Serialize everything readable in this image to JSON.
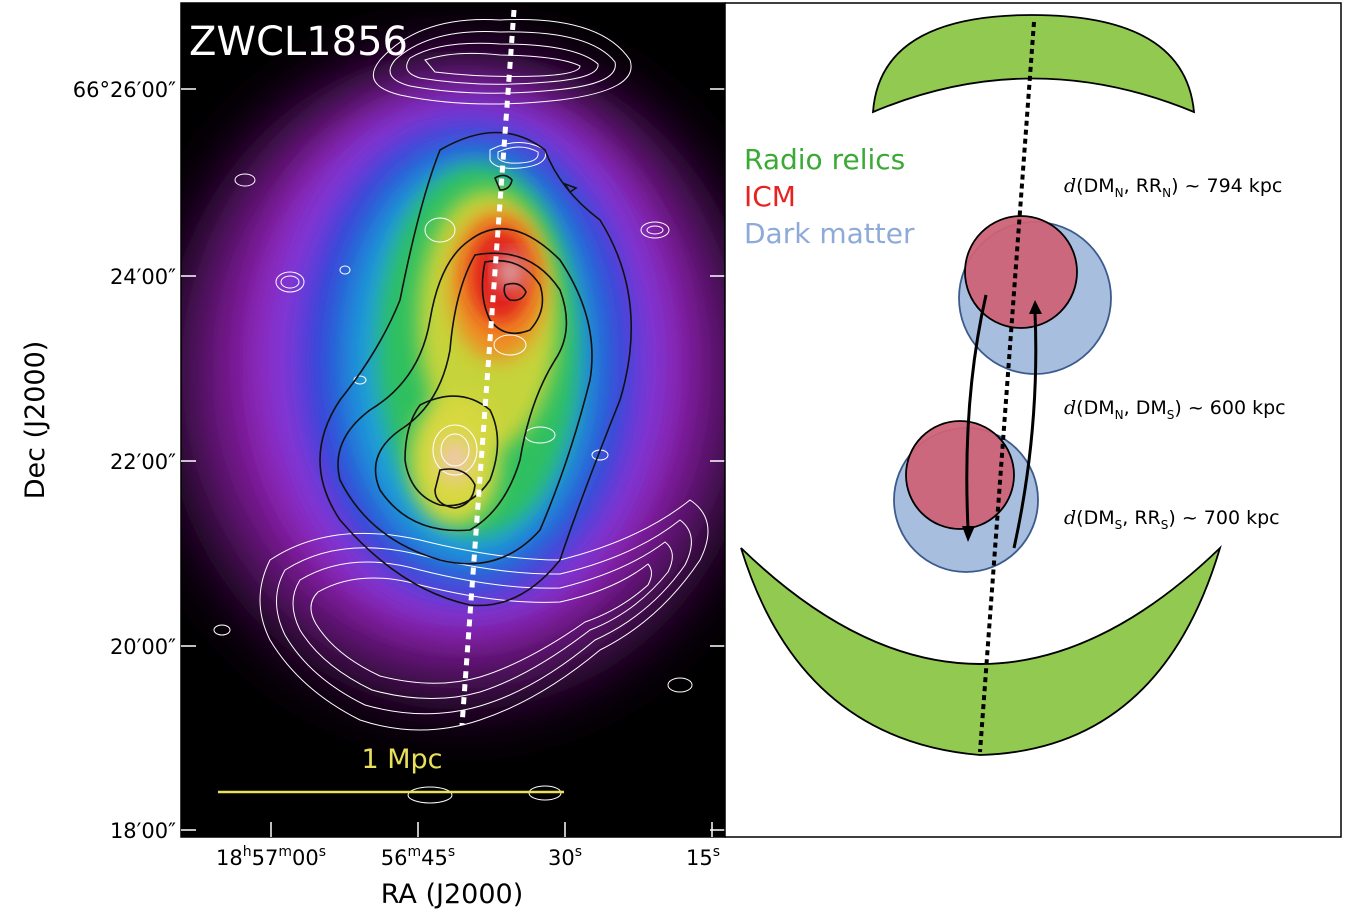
{
  "left_panel": {
    "title": "ZWCL1856",
    "scale_bar_label": "1 Mpc",
    "dec_ticks": [
      "66°26′00″",
      "24′00″",
      "22′00″",
      "20′00″",
      "18′00″"
    ],
    "ra_ticks": [
      {
        "main": "18",
        "s1": "h",
        "p2": "57",
        "s2": "m",
        "p3": "00",
        "s3": "s"
      },
      {
        "main": "56",
        "s1": "m",
        "p2": "45",
        "s2": "s",
        "p3": "",
        "s3": ""
      },
      {
        "main": "30",
        "s1": "s",
        "p2": "",
        "s2": "",
        "p3": "",
        "s3": ""
      },
      {
        "main": "15",
        "s1": "s",
        "p2": "",
        "s2": "",
        "p3": "",
        "s3": ""
      }
    ],
    "y_axis_title": "Dec (J2000)",
    "x_axis_title": "RA (J2000)"
  },
  "right_panel": {
    "legend": [
      {
        "label": "Radio relics",
        "color": "#3aaa35"
      },
      {
        "label": "ICM",
        "color": "#e8231f"
      },
      {
        "label": "Dark matter",
        "color": "#8eaad8"
      }
    ],
    "distances": [
      {
        "pre": "d",
        "a": "DM",
        "a_sub": "N",
        "b": "RR",
        "b_sub": "N",
        "value": "~ 794 kpc"
      },
      {
        "pre": "d",
        "a": "DM",
        "a_sub": "N",
        "b": "DM",
        "b_sub": "S",
        "value": "~ 600 kpc"
      },
      {
        "pre": "d",
        "a": "DM",
        "a_sub": "S",
        "b": "RR",
        "b_sub": "S",
        "value": "~ 700 kpc"
      }
    ],
    "colors": {
      "relic_fill": "#92c950",
      "icm_fill": "#cd6377",
      "dm_fill": "#a7bedf",
      "dm_stroke": "#3c5a8c"
    }
  }
}
